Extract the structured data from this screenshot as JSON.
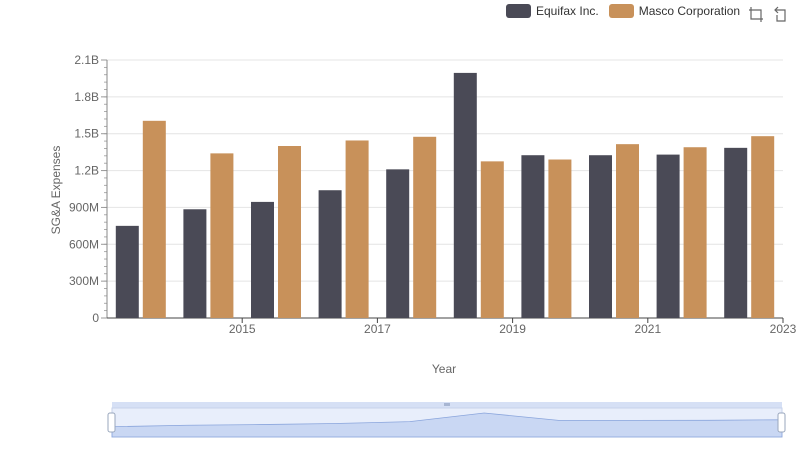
{
  "legend": {
    "series": [
      {
        "name": "Equifax Inc.",
        "color": "#4a4a56"
      },
      {
        "name": "Masco Corporation",
        "color": "#c8915a"
      }
    ]
  },
  "toolbox": {
    "icons": [
      "zoom-icon",
      "restore-icon"
    ]
  },
  "chart_data": {
    "type": "bar",
    "xlabel": "Year",
    "ylabel": "SG&A Expenses",
    "categories": [
      "2014",
      "2015",
      "2016",
      "2017",
      "2018",
      "2019",
      "2020",
      "2021",
      "2022",
      "2023"
    ],
    "x_tick_labels": [
      "2015",
      "2017",
      "2019",
      "2021",
      "2023"
    ],
    "y_tick_labels": [
      "0",
      "300M",
      "600M",
      "900M",
      "1.2B",
      "1.5B",
      "1.8B",
      "2.1B"
    ],
    "ylim": [
      0,
      2100000000
    ],
    "grid": true,
    "legend_position": "top-right",
    "series": [
      {
        "name": "Equifax Inc.",
        "color": "#4a4a56",
        "values": [
          750000000,
          885000000,
          945000000,
          1040000000,
          1210000000,
          1995000000,
          1325000000,
          1325000000,
          1330000000,
          1385000000
        ]
      },
      {
        "name": "Masco Corporation",
        "color": "#c8915a",
        "values": [
          1605000000,
          1340000000,
          1400000000,
          1445000000,
          1475000000,
          1275000000,
          1290000000,
          1415000000,
          1390000000,
          1480000000
        ]
      }
    ],
    "slider": {
      "range": [
        0,
        100
      ]
    }
  }
}
